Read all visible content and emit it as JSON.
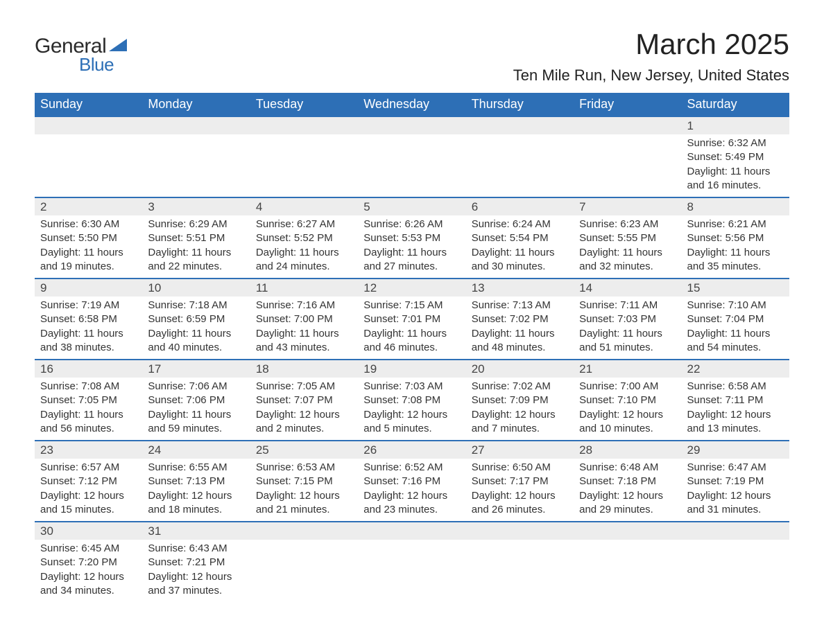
{
  "logo": {
    "word1": "General",
    "word2": "Blue"
  },
  "title": "March 2025",
  "subtitle": "Ten Mile Run, New Jersey, United States",
  "headers": [
    "Sunday",
    "Monday",
    "Tuesday",
    "Wednesday",
    "Thursday",
    "Friday",
    "Saturday"
  ],
  "colors": {
    "header_bg": "#2d6fb6",
    "header_text": "#ffffff",
    "daynum_bg": "#ededed",
    "row_border": "#2d6fb6",
    "text": "#333333",
    "title_text": "#222222"
  },
  "typography": {
    "title_fontsize": 42,
    "subtitle_fontsize": 22,
    "header_fontsize": 18,
    "daynum_fontsize": 17,
    "body_fontsize": 15
  },
  "layout": {
    "columns": 7,
    "aspect_ratio": "1188x918",
    "padding": 50
  },
  "weeks": [
    [
      null,
      null,
      null,
      null,
      null,
      null,
      {
        "n": "1",
        "sunrise": "Sunrise: 6:32 AM",
        "sunset": "Sunset: 5:49 PM",
        "day1": "Daylight: 11 hours",
        "day2": "and 16 minutes."
      }
    ],
    [
      {
        "n": "2",
        "sunrise": "Sunrise: 6:30 AM",
        "sunset": "Sunset: 5:50 PM",
        "day1": "Daylight: 11 hours",
        "day2": "and 19 minutes."
      },
      {
        "n": "3",
        "sunrise": "Sunrise: 6:29 AM",
        "sunset": "Sunset: 5:51 PM",
        "day1": "Daylight: 11 hours",
        "day2": "and 22 minutes."
      },
      {
        "n": "4",
        "sunrise": "Sunrise: 6:27 AM",
        "sunset": "Sunset: 5:52 PM",
        "day1": "Daylight: 11 hours",
        "day2": "and 24 minutes."
      },
      {
        "n": "5",
        "sunrise": "Sunrise: 6:26 AM",
        "sunset": "Sunset: 5:53 PM",
        "day1": "Daylight: 11 hours",
        "day2": "and 27 minutes."
      },
      {
        "n": "6",
        "sunrise": "Sunrise: 6:24 AM",
        "sunset": "Sunset: 5:54 PM",
        "day1": "Daylight: 11 hours",
        "day2": "and 30 minutes."
      },
      {
        "n": "7",
        "sunrise": "Sunrise: 6:23 AM",
        "sunset": "Sunset: 5:55 PM",
        "day1": "Daylight: 11 hours",
        "day2": "and 32 minutes."
      },
      {
        "n": "8",
        "sunrise": "Sunrise: 6:21 AM",
        "sunset": "Sunset: 5:56 PM",
        "day1": "Daylight: 11 hours",
        "day2": "and 35 minutes."
      }
    ],
    [
      {
        "n": "9",
        "sunrise": "Sunrise: 7:19 AM",
        "sunset": "Sunset: 6:58 PM",
        "day1": "Daylight: 11 hours",
        "day2": "and 38 minutes."
      },
      {
        "n": "10",
        "sunrise": "Sunrise: 7:18 AM",
        "sunset": "Sunset: 6:59 PM",
        "day1": "Daylight: 11 hours",
        "day2": "and 40 minutes."
      },
      {
        "n": "11",
        "sunrise": "Sunrise: 7:16 AM",
        "sunset": "Sunset: 7:00 PM",
        "day1": "Daylight: 11 hours",
        "day2": "and 43 minutes."
      },
      {
        "n": "12",
        "sunrise": "Sunrise: 7:15 AM",
        "sunset": "Sunset: 7:01 PM",
        "day1": "Daylight: 11 hours",
        "day2": "and 46 minutes."
      },
      {
        "n": "13",
        "sunrise": "Sunrise: 7:13 AM",
        "sunset": "Sunset: 7:02 PM",
        "day1": "Daylight: 11 hours",
        "day2": "and 48 minutes."
      },
      {
        "n": "14",
        "sunrise": "Sunrise: 7:11 AM",
        "sunset": "Sunset: 7:03 PM",
        "day1": "Daylight: 11 hours",
        "day2": "and 51 minutes."
      },
      {
        "n": "15",
        "sunrise": "Sunrise: 7:10 AM",
        "sunset": "Sunset: 7:04 PM",
        "day1": "Daylight: 11 hours",
        "day2": "and 54 minutes."
      }
    ],
    [
      {
        "n": "16",
        "sunrise": "Sunrise: 7:08 AM",
        "sunset": "Sunset: 7:05 PM",
        "day1": "Daylight: 11 hours",
        "day2": "and 56 minutes."
      },
      {
        "n": "17",
        "sunrise": "Sunrise: 7:06 AM",
        "sunset": "Sunset: 7:06 PM",
        "day1": "Daylight: 11 hours",
        "day2": "and 59 minutes."
      },
      {
        "n": "18",
        "sunrise": "Sunrise: 7:05 AM",
        "sunset": "Sunset: 7:07 PM",
        "day1": "Daylight: 12 hours",
        "day2": "and 2 minutes."
      },
      {
        "n": "19",
        "sunrise": "Sunrise: 7:03 AM",
        "sunset": "Sunset: 7:08 PM",
        "day1": "Daylight: 12 hours",
        "day2": "and 5 minutes."
      },
      {
        "n": "20",
        "sunrise": "Sunrise: 7:02 AM",
        "sunset": "Sunset: 7:09 PM",
        "day1": "Daylight: 12 hours",
        "day2": "and 7 minutes."
      },
      {
        "n": "21",
        "sunrise": "Sunrise: 7:00 AM",
        "sunset": "Sunset: 7:10 PM",
        "day1": "Daylight: 12 hours",
        "day2": "and 10 minutes."
      },
      {
        "n": "22",
        "sunrise": "Sunrise: 6:58 AM",
        "sunset": "Sunset: 7:11 PM",
        "day1": "Daylight: 12 hours",
        "day2": "and 13 minutes."
      }
    ],
    [
      {
        "n": "23",
        "sunrise": "Sunrise: 6:57 AM",
        "sunset": "Sunset: 7:12 PM",
        "day1": "Daylight: 12 hours",
        "day2": "and 15 minutes."
      },
      {
        "n": "24",
        "sunrise": "Sunrise: 6:55 AM",
        "sunset": "Sunset: 7:13 PM",
        "day1": "Daylight: 12 hours",
        "day2": "and 18 minutes."
      },
      {
        "n": "25",
        "sunrise": "Sunrise: 6:53 AM",
        "sunset": "Sunset: 7:15 PM",
        "day1": "Daylight: 12 hours",
        "day2": "and 21 minutes."
      },
      {
        "n": "26",
        "sunrise": "Sunrise: 6:52 AM",
        "sunset": "Sunset: 7:16 PM",
        "day1": "Daylight: 12 hours",
        "day2": "and 23 minutes."
      },
      {
        "n": "27",
        "sunrise": "Sunrise: 6:50 AM",
        "sunset": "Sunset: 7:17 PM",
        "day1": "Daylight: 12 hours",
        "day2": "and 26 minutes."
      },
      {
        "n": "28",
        "sunrise": "Sunrise: 6:48 AM",
        "sunset": "Sunset: 7:18 PM",
        "day1": "Daylight: 12 hours",
        "day2": "and 29 minutes."
      },
      {
        "n": "29",
        "sunrise": "Sunrise: 6:47 AM",
        "sunset": "Sunset: 7:19 PM",
        "day1": "Daylight: 12 hours",
        "day2": "and 31 minutes."
      }
    ],
    [
      {
        "n": "30",
        "sunrise": "Sunrise: 6:45 AM",
        "sunset": "Sunset: 7:20 PM",
        "day1": "Daylight: 12 hours",
        "day2": "and 34 minutes."
      },
      {
        "n": "31",
        "sunrise": "Sunrise: 6:43 AM",
        "sunset": "Sunset: 7:21 PM",
        "day1": "Daylight: 12 hours",
        "day2": "and 37 minutes."
      },
      null,
      null,
      null,
      null,
      null
    ]
  ]
}
